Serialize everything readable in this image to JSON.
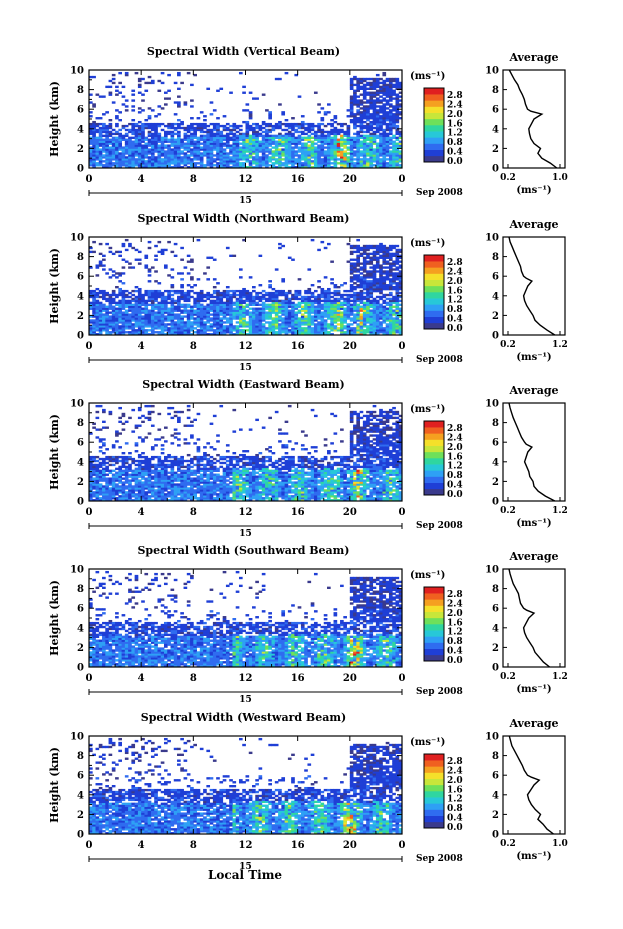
{
  "figure": {
    "x_axis_title": "Local Time",
    "colorbar_unit": "(ms⁻¹)",
    "colorbar_ticks": [
      "0.0",
      "0.4",
      "0.8",
      "1.2",
      "1.6",
      "2.0",
      "2.4",
      "2.8"
    ],
    "colorbar_colors": [
      "#3a3a8c",
      "#1f3fd6",
      "#2f6cf0",
      "#2ea0f5",
      "#27c8d8",
      "#2fd6a0",
      "#6ee05a",
      "#c8e63a",
      "#f5e02a",
      "#f5a020",
      "#f06020",
      "#e02020"
    ],
    "date_day": "15",
    "date_month": "Sep 2008",
    "avg_panel_title": "Average",
    "avg_xlabel": "(ms⁻¹)",
    "x_ticks": [
      "0",
      "4",
      "8",
      "12",
      "16",
      "20",
      "0"
    ],
    "y_ticks": [
      "0",
      "2",
      "4",
      "6",
      "8",
      "10"
    ],
    "avg_y_ticks": [
      "0",
      "2",
      "4",
      "6",
      "8",
      "10"
    ]
  },
  "chart_data": [
    {
      "type": "heatmap",
      "title": "Spectral Width (Vertical Beam)",
      "ylabel": "Height (km)",
      "ylim": [
        0,
        10
      ],
      "x_range_hours": [
        0,
        24
      ],
      "colorbar_range": [
        0.0,
        2.8
      ],
      "average_profile": {
        "title": "Average",
        "xlabel": "(ms⁻¹)",
        "x_ticks": [
          "0.2",
          "1.0"
        ],
        "xlim": [
          0.2,
          1.0
        ],
        "heights": [
          0,
          0.5,
          1,
          1.5,
          2,
          2.5,
          3,
          3.5,
          4,
          4.5,
          5,
          5.5,
          5.8,
          6,
          6.5,
          7,
          7.5,
          8,
          8.5,
          9,
          9.5,
          10
        ],
        "values": [
          0.95,
          0.85,
          0.72,
          0.66,
          0.7,
          0.6,
          0.55,
          0.53,
          0.52,
          0.56,
          0.6,
          0.72,
          0.55,
          0.5,
          0.47,
          0.45,
          0.42,
          0.38,
          0.35,
          0.3,
          0.26,
          0.22
        ]
      }
    },
    {
      "type": "heatmap",
      "title": "Spectral Width (Northward Beam)",
      "ylabel": "Height (km)",
      "ylim": [
        0,
        10
      ],
      "x_range_hours": [
        0,
        24
      ],
      "colorbar_range": [
        0.0,
        2.8
      ],
      "average_profile": {
        "title": "Average",
        "xlabel": "(ms⁻¹)",
        "x_ticks": [
          "0.2",
          "1.2"
        ],
        "xlim": [
          0.2,
          1.2
        ],
        "heights": [
          0,
          0.5,
          1,
          1.5,
          2,
          2.5,
          3,
          3.5,
          4,
          4.5,
          5,
          5.5,
          5.8,
          6,
          6.5,
          7,
          7.5,
          8,
          8.5,
          9,
          9.5,
          10
        ],
        "values": [
          1.1,
          0.95,
          0.82,
          0.72,
          0.68,
          0.62,
          0.56,
          0.52,
          0.5,
          0.54,
          0.58,
          0.66,
          0.55,
          0.5,
          0.46,
          0.44,
          0.4,
          0.36,
          0.32,
          0.28,
          0.24,
          0.22
        ]
      }
    },
    {
      "type": "heatmap",
      "title": "Spectral Width (Eastward Beam)",
      "ylabel": "Height (km)",
      "ylim": [
        0,
        10
      ],
      "x_range_hours": [
        0,
        24
      ],
      "colorbar_range": [
        0.0,
        2.8
      ],
      "average_profile": {
        "title": "Average",
        "xlabel": "(ms⁻¹)",
        "x_ticks": [
          "0.2",
          "1.2"
        ],
        "xlim": [
          0.2,
          1.2
        ],
        "heights": [
          0,
          0.5,
          1,
          1.5,
          2,
          2.5,
          3,
          3.5,
          4,
          4.5,
          5,
          5.5,
          5.8,
          6,
          6.5,
          7,
          7.5,
          8,
          8.5,
          9,
          9.5,
          10
        ],
        "values": [
          1.1,
          0.92,
          0.78,
          0.7,
          0.68,
          0.62,
          0.6,
          0.56,
          0.52,
          0.55,
          0.58,
          0.66,
          0.55,
          0.52,
          0.46,
          0.42,
          0.38,
          0.34,
          0.3,
          0.27,
          0.24,
          0.22
        ]
      }
    },
    {
      "type": "heatmap",
      "title": "Spectral Width (Southward Beam)",
      "ylabel": "Height (km)",
      "ylim": [
        0,
        10
      ],
      "x_range_hours": [
        0,
        24
      ],
      "colorbar_range": [
        0.0,
        2.8
      ],
      "average_profile": {
        "title": "Average",
        "xlabel": "(ms⁻¹)",
        "x_ticks": [
          "0.2",
          "1.2"
        ],
        "xlim": [
          0.2,
          1.2
        ],
        "heights": [
          0,
          0.5,
          1,
          1.5,
          2,
          2.5,
          3,
          3.5,
          4,
          4.5,
          5,
          5.5,
          5.8,
          6,
          6.5,
          7,
          7.5,
          8,
          8.5,
          9,
          9.5,
          10
        ],
        "values": [
          1.0,
          0.88,
          0.8,
          0.72,
          0.68,
          0.62,
          0.56,
          0.52,
          0.5,
          0.55,
          0.6,
          0.7,
          0.56,
          0.5,
          0.44,
          0.42,
          0.4,
          0.35,
          0.3,
          0.27,
          0.24,
          0.22
        ]
      }
    },
    {
      "type": "heatmap",
      "title": "Spectral Width (Westward Beam)",
      "ylabel": "Height (km)",
      "ylim": [
        0,
        10
      ],
      "x_range_hours": [
        0,
        24
      ],
      "colorbar_range": [
        0.0,
        2.8
      ],
      "average_profile": {
        "title": "Average",
        "xlabel": "(ms⁻¹)",
        "x_ticks": [
          "0.2",
          "1.0"
        ],
        "xlim": [
          0.2,
          1.0
        ],
        "heights": [
          0,
          0.5,
          1,
          1.5,
          2,
          2.5,
          3,
          3.5,
          4,
          4.5,
          5,
          5.5,
          5.8,
          6,
          6.5,
          7,
          7.5,
          8,
          8.5,
          9,
          9.5,
          10
        ],
        "values": [
          0.9,
          0.8,
          0.74,
          0.66,
          0.7,
          0.62,
          0.56,
          0.52,
          0.5,
          0.55,
          0.6,
          0.68,
          0.56,
          0.5,
          0.45,
          0.42,
          0.38,
          0.34,
          0.3,
          0.26,
          0.24,
          0.22
        ]
      }
    }
  ]
}
